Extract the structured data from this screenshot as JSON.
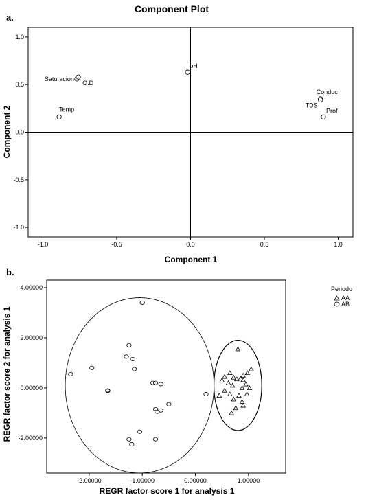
{
  "chart_data": [
    {
      "type": "scatter",
      "panel_label": "a.",
      "title": "Component Plot",
      "xlabel": "Component 1",
      "ylabel": "Component 2",
      "xlim": [
        -1.1,
        1.1
      ],
      "ylim": [
        -1.1,
        1.1
      ],
      "xticks": [
        -1.0,
        -0.5,
        0.0,
        0.5,
        1.0
      ],
      "xtick_labels": [
        "-1.0",
        "-0.5",
        "0.0",
        "0.5",
        "1.0"
      ],
      "yticks": [
        1.0,
        0.5,
        0.0,
        -0.5,
        -1.0
      ],
      "ytick_labels": [
        "1.0",
        "0.5",
        "0.0",
        "-0.5",
        "-1.0"
      ],
      "grid": false,
      "reference_lines": {
        "x": 0,
        "y": 0
      },
      "points": [
        {
          "label": "Saturacion",
          "x": -0.77,
          "y": 0.56
        },
        {
          "label": "O.D",
          "x": -0.76,
          "y": 0.58
        },
        {
          "label": "pH",
          "x": -0.02,
          "y": 0.63
        },
        {
          "label": "Conduc",
          "x": 0.88,
          "y": 0.35
        },
        {
          "label": "TDS",
          "x": 0.88,
          "y": 0.34
        },
        {
          "label": "Prof",
          "x": 0.9,
          "y": 0.16
        },
        {
          "label": "Temp",
          "x": -0.89,
          "y": 0.16
        }
      ]
    },
    {
      "type": "scatter",
      "panel_label": "b.",
      "xlabel": "REGR factor score   1 for analysis 1",
      "ylabel": "REGR factor score   2 for analysis 1",
      "xlim": [
        -2.8,
        1.7
      ],
      "ylim": [
        -3.4,
        4.3
      ],
      "xticks": [
        -2.0,
        -1.0,
        0.0,
        1.0
      ],
      "xtick_labels": [
        "-2.00000",
        "-1.00000",
        "0.00000",
        "1.00000"
      ],
      "yticks": [
        4.0,
        2.0,
        0.0,
        -2.0
      ],
      "ytick_labels": [
        "4.00000",
        "2.00000",
        "0.00000",
        "-2.00000"
      ],
      "grid": false,
      "legend": {
        "title": "Periodo",
        "placement": "outside-top-right"
      },
      "series": [
        {
          "name": "AA",
          "marker": "triangle",
          "points": [
            [
              0.8,
              1.55
            ],
            [
              1.05,
              0.75
            ],
            [
              0.98,
              0.6
            ],
            [
              0.9,
              0.5
            ],
            [
              0.65,
              0.6
            ],
            [
              0.55,
              0.45
            ],
            [
              0.72,
              0.42
            ],
            [
              0.85,
              0.38
            ],
            [
              0.9,
              0.32
            ],
            [
              0.78,
              0.35
            ],
            [
              0.5,
              0.3
            ],
            [
              0.62,
              0.2
            ],
            [
              0.95,
              0.15
            ],
            [
              0.7,
              0.1
            ],
            [
              0.88,
              0.0
            ],
            [
              1.02,
              0.0
            ],
            [
              0.55,
              -0.1
            ],
            [
              0.65,
              -0.25
            ],
            [
              0.82,
              -0.3
            ],
            [
              0.97,
              -0.25
            ],
            [
              0.45,
              -0.3
            ],
            [
              0.72,
              -0.45
            ],
            [
              0.88,
              -0.55
            ],
            [
              0.9,
              -0.7
            ],
            [
              0.76,
              -0.8
            ],
            [
              0.68,
              -1.0
            ]
          ]
        },
        {
          "name": "AB",
          "marker": "circle",
          "points": [
            [
              -1.0,
              3.4
            ],
            [
              -1.25,
              1.7
            ],
            [
              -1.3,
              1.25
            ],
            [
              -1.18,
              1.15
            ],
            [
              -1.95,
              0.8
            ],
            [
              -1.15,
              0.75
            ],
            [
              -2.35,
              0.55
            ],
            [
              -0.8,
              0.2
            ],
            [
              -0.75,
              0.2
            ],
            [
              -0.65,
              0.15
            ],
            [
              -1.65,
              -0.1
            ],
            [
              -1.65,
              -0.12
            ],
            [
              0.2,
              -0.25
            ],
            [
              -0.5,
              -0.65
            ],
            [
              -0.75,
              -0.85
            ],
            [
              -0.72,
              -0.95
            ],
            [
              -0.65,
              -0.9
            ],
            [
              -1.05,
              -1.75
            ],
            [
              -1.25,
              -2.05
            ],
            [
              -0.75,
              -2.05
            ],
            [
              -1.2,
              -2.25
            ]
          ]
        }
      ],
      "annotations": [
        {
          "shape": "ellipse",
          "around_series": "AB",
          "cx": -1.05,
          "cy": 0.1,
          "rx": 1.4,
          "ry": 3.5
        },
        {
          "shape": "ellipse",
          "around_series": "AA",
          "cx": 0.8,
          "cy": 0.1,
          "rx": 0.45,
          "ry": 1.8
        }
      ]
    }
  ]
}
